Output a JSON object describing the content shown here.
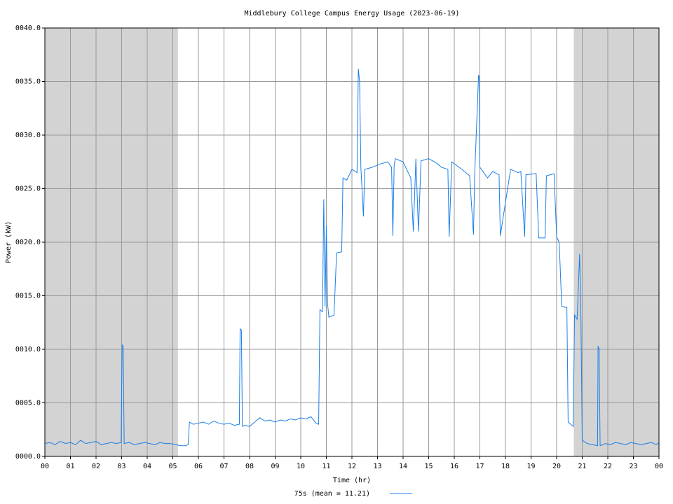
{
  "chart_data": {
    "type": "line",
    "title": "Middlebury College Campus Energy Usage (2023-06-19)",
    "x_label": "Time (hr)",
    "y_label": "Power (kW)",
    "x": [
      0,
      0.2,
      0.4,
      0.6,
      0.8,
      1.0,
      1.2,
      1.4,
      1.6,
      1.8,
      2.0,
      2.2,
      2.4,
      2.6,
      2.8,
      2.98,
      3.02,
      3.06,
      3.1,
      3.3,
      3.5,
      3.7,
      3.9,
      4.1,
      4.3,
      4.5,
      4.7,
      4.9,
      5.1,
      5.3,
      5.5,
      5.6,
      5.65,
      5.8,
      6.0,
      6.2,
      6.4,
      6.6,
      6.8,
      7.0,
      7.2,
      7.4,
      7.6,
      7.63,
      7.68,
      7.72,
      7.8,
      8.0,
      8.2,
      8.4,
      8.6,
      8.8,
      9.0,
      9.2,
      9.4,
      9.6,
      9.8,
      10.0,
      10.2,
      10.4,
      10.6,
      10.7,
      10.75,
      10.85,
      10.9,
      10.95,
      11.0,
      11.05,
      11.1,
      11.3,
      11.4,
      11.6,
      11.65,
      11.8,
      12.0,
      12.2,
      12.25,
      12.3,
      12.35,
      12.45,
      12.5,
      12.8,
      13.1,
      13.4,
      13.55,
      13.6,
      13.65,
      13.7,
      14.0,
      14.3,
      14.4,
      14.5,
      14.6,
      14.7,
      15.0,
      15.3,
      15.5,
      15.75,
      15.8,
      15.9,
      16.3,
      16.6,
      16.75,
      16.8,
      16.95,
      16.98,
      17.0,
      17.3,
      17.5,
      17.75,
      17.8,
      18.2,
      18.5,
      18.6,
      18.75,
      18.8,
      19.2,
      19.3,
      19.55,
      19.6,
      19.9,
      20.0,
      20.1,
      20.2,
      20.4,
      20.45,
      20.6,
      20.65,
      20.7,
      20.8,
      20.9,
      20.95,
      21.0,
      21.2,
      21.4,
      21.6,
      21.62,
      21.66,
      21.7,
      21.9,
      22.1,
      22.3,
      22.5,
      22.7,
      22.9,
      23.1,
      23.3,
      23.5,
      23.7,
      23.9,
      24
    ],
    "series": [
      {
        "name": "75s (mean = 11.21)",
        "color": "#1a7fe8",
        "values": [
          1.2,
          1.3,
          1.1,
          1.4,
          1.2,
          1.3,
          1.1,
          1.5,
          1.2,
          1.3,
          1.4,
          1.1,
          1.2,
          1.3,
          1.2,
          1.3,
          10.4,
          10.3,
          1.2,
          1.3,
          1.1,
          1.2,
          1.3,
          1.2,
          1.1,
          1.3,
          1.2,
          1.2,
          1.1,
          1.0,
          1.0,
          1.1,
          3.2,
          3.0,
          3.1,
          3.2,
          3.0,
          3.3,
          3.1,
          3.0,
          3.1,
          2.9,
          3.0,
          11.9,
          11.8,
          2.8,
          2.9,
          2.8,
          3.2,
          3.6,
          3.3,
          3.4,
          3.2,
          3.4,
          3.3,
          3.5,
          3.4,
          3.6,
          3.5,
          3.7,
          3.1,
          3.0,
          13.7,
          13.5,
          24.0,
          14.0,
          21.5,
          14.2,
          13.0,
          13.2,
          19.0,
          19.1,
          26.0,
          25.8,
          26.8,
          26.5,
          36.2,
          35.0,
          27.0,
          22.4,
          26.8,
          27.0,
          27.3,
          27.5,
          27.0,
          20.6,
          27.2,
          27.8,
          27.5,
          26.0,
          21.0,
          27.8,
          21.0,
          27.6,
          27.8,
          27.4,
          27.0,
          26.8,
          20.5,
          27.5,
          26.8,
          26.2,
          20.7,
          26.5,
          35.6,
          35.4,
          27.0,
          26.0,
          26.6,
          26.3,
          20.6,
          26.8,
          26.5,
          26.6,
          20.5,
          26.3,
          26.4,
          20.4,
          20.4,
          26.2,
          26.4,
          20.5,
          20.0,
          14.0,
          13.9,
          3.2,
          2.9,
          2.8,
          13.2,
          12.8,
          18.9,
          13.0,
          1.5,
          1.2,
          1.1,
          1.0,
          10.3,
          10.0,
          1.0,
          1.2,
          1.1,
          1.3,
          1.2,
          1.1,
          1.3,
          1.2,
          1.1,
          1.2,
          1.3,
          1.1,
          1.3
        ]
      }
    ],
    "xlim": [
      0,
      24
    ],
    "ylim": [
      0,
      40
    ],
    "xticks": [
      {
        "value": 0,
        "label": "00"
      },
      {
        "value": 1,
        "label": "01"
      },
      {
        "value": 2,
        "label": "02"
      },
      {
        "value": 3,
        "label": "03"
      },
      {
        "value": 4,
        "label": "04"
      },
      {
        "value": 5,
        "label": "05"
      },
      {
        "value": 6,
        "label": "06"
      },
      {
        "value": 7,
        "label": "07"
      },
      {
        "value": 8,
        "label": "08"
      },
      {
        "value": 9,
        "label": "09"
      },
      {
        "value": 10,
        "label": "10"
      },
      {
        "value": 11,
        "label": "11"
      },
      {
        "value": 12,
        "label": "12"
      },
      {
        "value": 13,
        "label": "13"
      },
      {
        "value": 14,
        "label": "14"
      },
      {
        "value": 15,
        "label": "15"
      },
      {
        "value": 16,
        "label": "16"
      },
      {
        "value": 17,
        "label": "17"
      },
      {
        "value": 18,
        "label": "18"
      },
      {
        "value": 19,
        "label": "19"
      },
      {
        "value": 20,
        "label": "20"
      },
      {
        "value": 21,
        "label": "21"
      },
      {
        "value": 22,
        "label": "22"
      },
      {
        "value": 23,
        "label": "23"
      },
      {
        "value": 24,
        "label": "00"
      }
    ],
    "yticks": [
      {
        "value": 0,
        "label": "0000.0"
      },
      {
        "value": 5,
        "label": "0005.0"
      },
      {
        "value": 10,
        "label": "0010.0"
      },
      {
        "value": 15,
        "label": "0015.0"
      },
      {
        "value": 20,
        "label": "0020.0"
      },
      {
        "value": 25,
        "label": "0025.0"
      },
      {
        "value": 30,
        "label": "0030.0"
      },
      {
        "value": 35,
        "label": "0035.0"
      },
      {
        "value": 40,
        "label": "0040.0"
      }
    ],
    "shaded_x": [
      [
        0,
        5.2
      ],
      [
        20.67,
        24
      ]
    ],
    "shade_color": "#d3d3d3",
    "grid": true
  }
}
